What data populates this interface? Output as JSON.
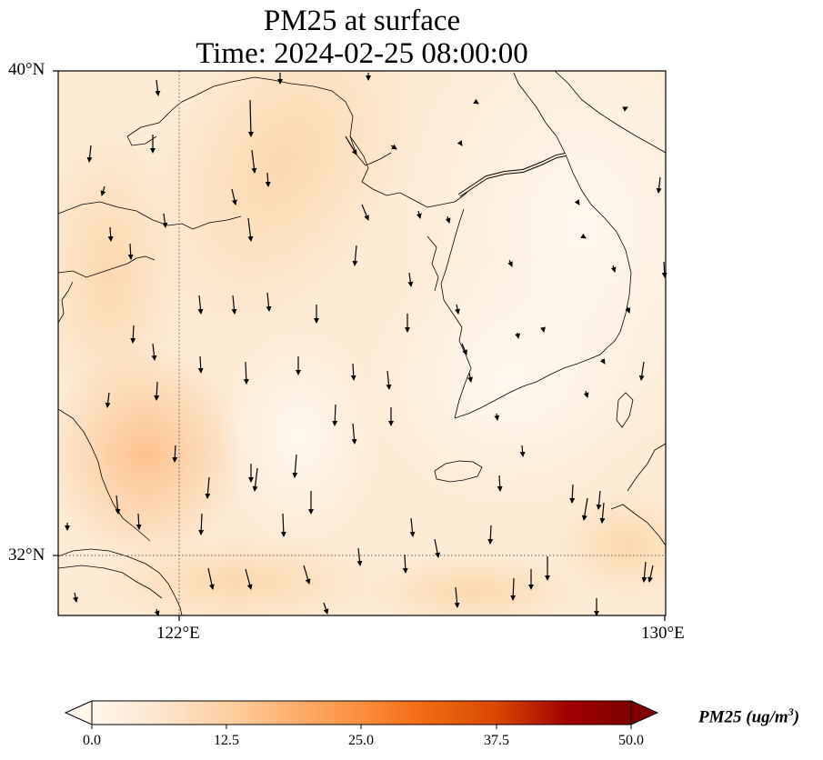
{
  "figure": {
    "title_line1": "PM25 at surface",
    "title_line2": "Time: 2024-02-25 08:00:00"
  },
  "map": {
    "extent": {
      "lon_min": 120,
      "lon_max": 130,
      "lat_min": 31,
      "lat_max": 40
    },
    "gridlines": {
      "lon": [
        122,
        130
      ],
      "lat": [
        32,
        40
      ],
      "style": "dotted"
    },
    "lat_labels": [
      "40°N",
      "32°N"
    ],
    "lon_labels": [
      "122°E",
      "130°E"
    ],
    "field_colors": {
      "low": "#fff5eb",
      "mid": "#fdd9b0",
      "high": "#fdbe87"
    },
    "wind_arrow_color": "#000000",
    "wind_direction": "mostly southward (northerly winds)"
  },
  "colorbar": {
    "label": "PM25 (ug/m",
    "label_exp": "3",
    "label_close": ")",
    "ticks": [
      "0.0",
      "12.5",
      "25.0",
      "37.5",
      "50.0"
    ],
    "range": [
      0,
      50
    ],
    "extend": "both",
    "colormap": "Oranges",
    "colors": [
      "#fff5eb",
      "#fee6ce",
      "#fdd0a2",
      "#fdae6b",
      "#fd8d3c",
      "#f16913",
      "#d94801",
      "#a30000",
      "#7f0000"
    ]
  }
}
